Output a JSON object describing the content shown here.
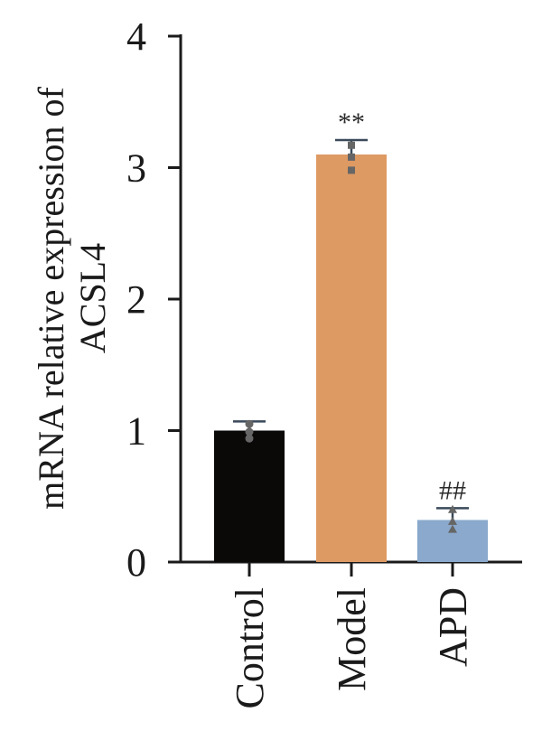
{
  "chart_data": {
    "type": "bar",
    "title": "",
    "xlabel": "",
    "ylabel_lines": [
      "mRNA relative expression of",
      "ACSL4"
    ],
    "ylim": [
      0,
      4
    ],
    "yticks": [
      "0",
      "1",
      "2",
      "3",
      "4"
    ],
    "categories": [
      "Control",
      "Model",
      "APD"
    ],
    "values": [
      1.0,
      3.1,
      0.32
    ],
    "errors": [
      0.07,
      0.11,
      0.09
    ],
    "points": [
      [
        1.05,
        0.99,
        0.94
      ],
      [
        3.17,
        3.08,
        2.98
      ],
      [
        0.4,
        0.31,
        0.25
      ]
    ],
    "annotations": [
      "",
      "**",
      "##"
    ],
    "colors": [
      "#0b0808",
      "#de9a63",
      "#8aa9cc"
    ],
    "error_color": "#3a4a5a",
    "point_color": "#666666"
  }
}
